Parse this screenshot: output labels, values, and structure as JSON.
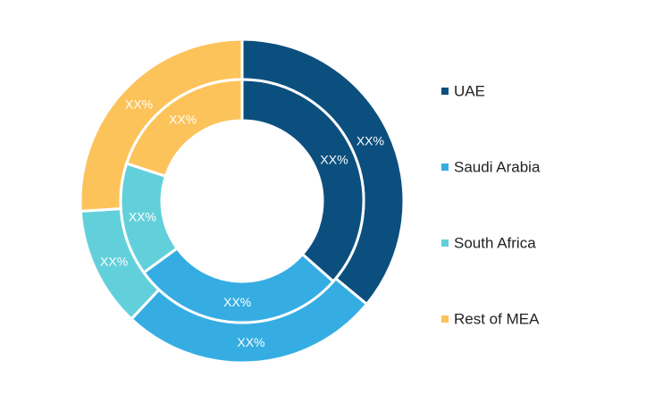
{
  "chart_data": {
    "type": "pie",
    "variant": "nested-donut",
    "categories": [
      "UAE",
      "Saudi Arabia",
      "South Africa",
      "Rest of MEA"
    ],
    "colors": [
      "#0b4f7e",
      "#35ade3",
      "#62d0da",
      "#fdc35b"
    ],
    "series": [
      {
        "values": [
          36,
          26,
          12,
          26
        ],
        "labels": [
          "XX%",
          "XX%",
          "XX%",
          "XX%"
        ]
      },
      {
        "values": [
          36.5,
          28.5,
          15,
          20
        ],
        "labels": [
          "XX%",
          "XX%",
          "XX%",
          "XX%"
        ]
      }
    ],
    "legend_position": "right"
  }
}
